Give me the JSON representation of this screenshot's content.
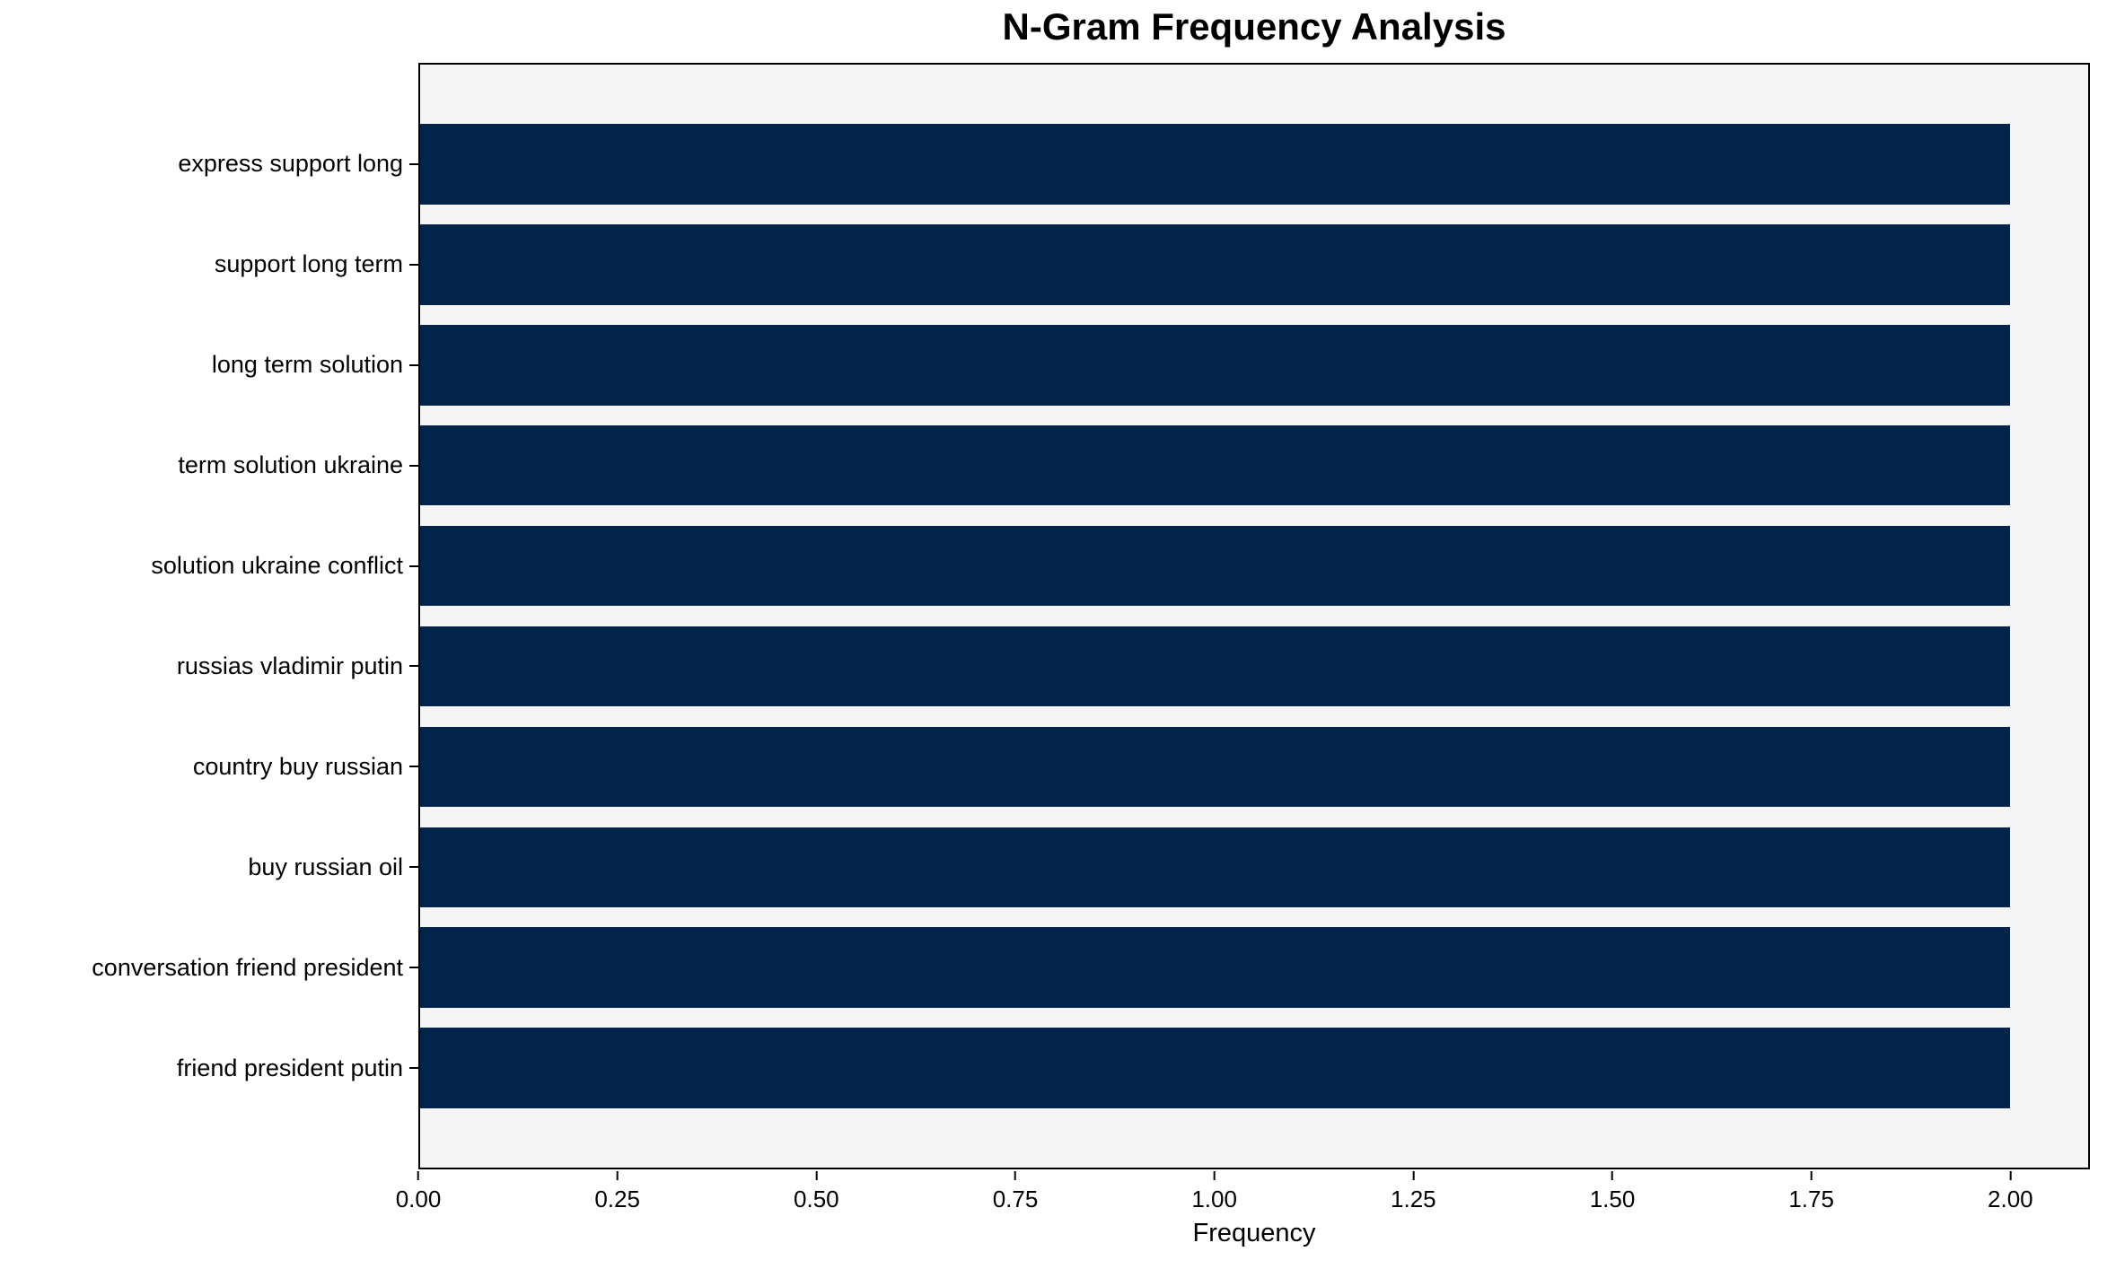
{
  "chart_data": {
    "type": "bar",
    "orientation": "horizontal",
    "title": "N-Gram Frequency Analysis",
    "xlabel": "Frequency",
    "ylabel": "",
    "categories": [
      "express support long",
      "support long term",
      "long term solution",
      "term solution ukraine",
      "solution ukraine conflict",
      "russias vladimir putin",
      "country buy russian",
      "buy russian oil",
      "conversation friend president",
      "friend president putin"
    ],
    "values": [
      2,
      2,
      2,
      2,
      2,
      2,
      2,
      2,
      2,
      2
    ],
    "xlim": [
      0,
      2.1
    ],
    "xticks": [
      {
        "value": 0.0,
        "label": "0.00"
      },
      {
        "value": 0.25,
        "label": "0.25"
      },
      {
        "value": 0.5,
        "label": "0.50"
      },
      {
        "value": 0.75,
        "label": "0.75"
      },
      {
        "value": 1.0,
        "label": "1.00"
      },
      {
        "value": 1.25,
        "label": "1.25"
      },
      {
        "value": 1.5,
        "label": "1.50"
      },
      {
        "value": 1.75,
        "label": "1.75"
      },
      {
        "value": 2.0,
        "label": "2.00"
      }
    ],
    "grid": false,
    "legend_position": "none",
    "colors": {
      "bar": "#02244a",
      "plot_background": "#f5f5f6",
      "figure_background": "#ffffff",
      "text": "#000000"
    }
  }
}
